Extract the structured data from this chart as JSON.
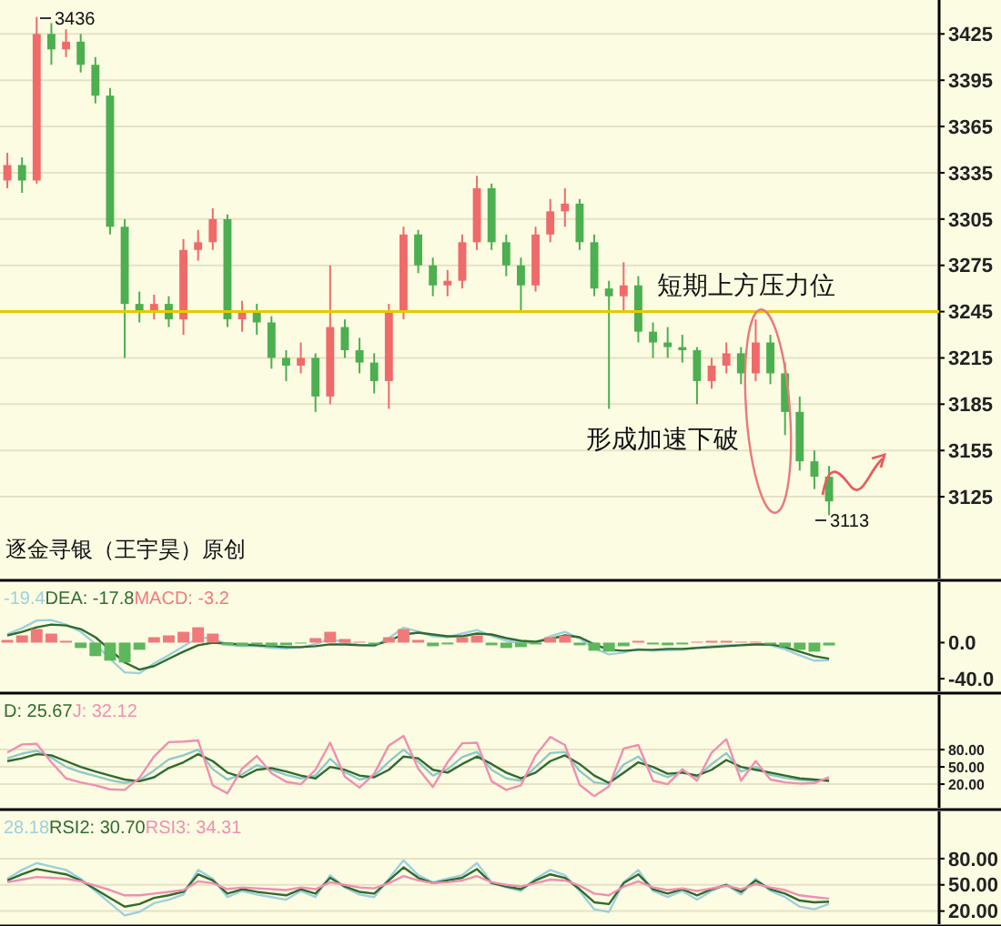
{
  "chart_data": [
    {
      "type": "candlestick",
      "categories": [
        null,
        null,
        null,
        null,
        null,
        null,
        null,
        null,
        null,
        null,
        null,
        null,
        null,
        null,
        null,
        null,
        null,
        null,
        null,
        null,
        null,
        null,
        null,
        null,
        null,
        null,
        null,
        null,
        null,
        null,
        null,
        null,
        null,
        null,
        null,
        null,
        null,
        null,
        null,
        null,
        null,
        null,
        null,
        null,
        null,
        null,
        null,
        null,
        null,
        null,
        null,
        null,
        null,
        null,
        null,
        null,
        null,
        null,
        null,
        null,
        null,
        null,
        null,
        null
      ],
      "ohlc": [
        [
          3330,
          3348,
          3325,
          3340
        ],
        [
          3340,
          3345,
          3322,
          3330
        ],
        [
          3330,
          3436,
          3328,
          3425
        ],
        [
          3425,
          3432,
          3405,
          3415
        ],
        [
          3415,
          3428,
          3410,
          3420
        ],
        [
          3420,
          3425,
          3400,
          3405
        ],
        [
          3405,
          3410,
          3380,
          3385
        ],
        [
          3385,
          3390,
          3295,
          3300
        ],
        [
          3300,
          3305,
          3215,
          3250
        ],
        [
          3250,
          3258,
          3238,
          3245
        ],
        [
          3245,
          3256,
          3240,
          3250
        ],
        [
          3250,
          3255,
          3235,
          3240
        ],
        [
          3240,
          3292,
          3230,
          3285
        ],
        [
          3285,
          3298,
          3278,
          3290
        ],
        [
          3290,
          3312,
          3285,
          3305
        ],
        [
          3305,
          3308,
          3235,
          3240
        ],
        [
          3240,
          3252,
          3232,
          3245
        ],
        [
          3245,
          3250,
          3230,
          3238
        ],
        [
          3238,
          3242,
          3208,
          3215
        ],
        [
          3215,
          3220,
          3200,
          3210
        ],
        [
          3210,
          3225,
          3205,
          3215
        ],
        [
          3215,
          3218,
          3180,
          3190
        ],
        [
          3190,
          3275,
          3185,
          3235
        ],
        [
          3235,
          3240,
          3215,
          3220
        ],
        [
          3220,
          3228,
          3205,
          3212
        ],
        [
          3212,
          3218,
          3192,
          3200
        ],
        [
          3200,
          3250,
          3182,
          3245
        ],
        [
          3245,
          3300,
          3240,
          3295
        ],
        [
          3295,
          3298,
          3270,
          3275
        ],
        [
          3275,
          3280,
          3255,
          3262
        ],
        [
          3262,
          3272,
          3255,
          3265
        ],
        [
          3265,
          3295,
          3260,
          3290
        ],
        [
          3290,
          3333,
          3285,
          3325
        ],
        [
          3325,
          3328,
          3285,
          3290
        ],
        [
          3290,
          3295,
          3268,
          3275
        ],
        [
          3275,
          3280,
          3245,
          3262
        ],
        [
          3262,
          3300,
          3258,
          3295
        ],
        [
          3295,
          3318,
          3290,
          3310
        ],
        [
          3310,
          3325,
          3300,
          3315
        ],
        [
          3315,
          3318,
          3285,
          3290
        ],
        [
          3290,
          3295,
          3255,
          3260
        ],
        [
          3260,
          3265,
          3182,
          3255
        ],
        [
          3255,
          3277,
          3245,
          3262
        ],
        [
          3262,
          3268,
          3225,
          3232
        ],
        [
          3232,
          3238,
          3215,
          3225
        ],
        [
          3225,
          3235,
          3215,
          3222
        ],
        [
          3222,
          3230,
          3212,
          3220
        ],
        [
          3220,
          3222,
          3185,
          3200
        ],
        [
          3200,
          3215,
          3195,
          3210
        ],
        [
          3210,
          3225,
          3205,
          3218
        ],
        [
          3218,
          3222,
          3198,
          3205
        ],
        [
          3205,
          3240,
          3200,
          3225
        ],
        [
          3225,
          3230,
          3198,
          3205
        ],
        [
          3205,
          3212,
          3165,
          3180
        ],
        [
          3180,
          3190,
          3142,
          3148
        ],
        [
          3148,
          3155,
          3130,
          3138
        ],
        [
          3138,
          3145,
          3113,
          3122
        ],
        null,
        null,
        null,
        null,
        null,
        null,
        null
      ],
      "colors": [
        "#f06a6a",
        "#4caf50",
        "#f06a6a",
        "#4caf50",
        "#f06a6a",
        "#4caf50",
        "#4caf50",
        "#4caf50",
        "#4caf50",
        "#4caf50",
        "#f06a6a",
        "#4caf50",
        "#f06a6a",
        "#f06a6a",
        "#f06a6a",
        "#4caf50",
        "#f06a6a",
        "#4caf50",
        "#4caf50",
        "#4caf50",
        "#f06a6a",
        "#4caf50",
        "#f06a6a",
        "#4caf50",
        "#4caf50",
        "#4caf50",
        "#f06a6a",
        "#f06a6a",
        "#4caf50",
        "#4caf50",
        "#f06a6a",
        "#f06a6a",
        "#f06a6a",
        "#4caf50",
        "#4caf50",
        "#4caf50",
        "#f06a6a",
        "#f06a6a",
        "#f06a6a",
        "#4caf50",
        "#4caf50",
        "#4caf50",
        "#f06a6a",
        "#4caf50",
        "#4caf50",
        "#4caf50",
        "#4caf50",
        "#4caf50",
        "#f06a6a",
        "#f06a6a",
        "#4caf50",
        "#f06a6a",
        "#4caf50",
        "#4caf50",
        "#4caf50",
        "#4caf50",
        "#4caf50",
        null,
        null,
        null,
        null,
        null,
        null,
        null
      ],
      "ylim": [
        3072,
        3447
      ],
      "yticks": [
        3125,
        3155,
        3185,
        3215,
        3245,
        3275,
        3305,
        3335,
        3365,
        3395,
        3425
      ],
      "grid": "y",
      "tick_labels": "y",
      "ref_lines": [
        {
          "axis": "y",
          "value": 3245,
          "label": "短期上方压力位",
          "color": "#e8c800"
        }
      ],
      "annotations": [
        "3436",
        "3113",
        "形成加速下破",
        "逐金寻银（王宇昊）原创"
      ]
    },
    {
      "type": "line",
      "categories": [
        null,
        null,
        null,
        null,
        null,
        null,
        null,
        null,
        null,
        null,
        null,
        null,
        null,
        null,
        null,
        null,
        null,
        null,
        null,
        null,
        null,
        null,
        null,
        null,
        null,
        null,
        null,
        null,
        null,
        null,
        null,
        null,
        null,
        null,
        null,
        null,
        null,
        null,
        null,
        null,
        null,
        null,
        null,
        null,
        null,
        null,
        null,
        null,
        null,
        null,
        null,
        null,
        null,
        null,
        null,
        null,
        null,
        null,
        null,
        null,
        null,
        null,
        null,
        null
      ],
      "ylim": [
        -54,
        67
      ],
      "yticks": [
        {
          "value": 0,
          "label": "0.0"
        },
        {
          "value": -40,
          "label": "-40.0"
        }
      ],
      "tick_labels": "y",
      "legend": "top left",
      "series": [
        {
          "name": "-19.4",
          "color": "#9ed0dc",
          "values": [
            9.5,
            16,
            24.5,
            25,
            20,
            12,
            -1.5,
            -18,
            -33,
            -34,
            -23,
            -14,
            -4,
            5.5,
            5,
            -2.5,
            -4,
            -4,
            -6,
            -6.5,
            -5.5,
            -1.5,
            4,
            0,
            -2.5,
            -4,
            5,
            16.5,
            12.5,
            7,
            6,
            10,
            14,
            7.5,
            2,
            -0.5,
            0,
            7,
            12,
            4.5,
            -6.5,
            -13,
            -11,
            -7,
            -9,
            -8.5,
            -8,
            -5.5,
            -4,
            -3,
            -2.5,
            -1.5,
            -3,
            -7.5,
            -14,
            -20,
            -19.4,
            null,
            null,
            null,
            null,
            null,
            null,
            null
          ]
        },
        {
          "name": "DEA: -17.8",
          "color": "#2f6b2f",
          "values": [
            8,
            12,
            17,
            20,
            19,
            15,
            6,
            -8,
            -22,
            -30,
            -26,
            -18,
            -10,
            -3,
            0,
            -1,
            -2,
            -3,
            -4,
            -5,
            -5,
            -4,
            -2,
            -2,
            -3,
            -3,
            2,
            9,
            11,
            9,
            7,
            7,
            10,
            9,
            5,
            2,
            1,
            4,
            8,
            6,
            -2,
            -8,
            -9,
            -8,
            -8,
            -7,
            -7,
            -6,
            -5,
            -4,
            -3,
            -2,
            -2,
            -5,
            -10,
            -15,
            -17.8,
            null,
            null,
            null,
            null,
            null,
            null,
            null
          ]
        },
        {
          "name": "MACD: -3.2",
          "type": "bar",
          "color": "#f07a7a",
          "colors": [
            "#f07a7a",
            "#f07a7a",
            "#f07a7a",
            "#f07a7a",
            "#f07a7a",
            "#5cb85c",
            "#5cb85c",
            "#5cb85c",
            "#5cb85c",
            "#5cb85c",
            "#f07a7a",
            "#f07a7a",
            "#f07a7a",
            "#f07a7a",
            "#f07a7a",
            "#5cb85c",
            "#5cb85c",
            "#5cb85c",
            "#5cb85c",
            "#5cb85c",
            "#5cb85c",
            "#f07a7a",
            "#f07a7a",
            "#f07a7a",
            "#f07a7a",
            "#5cb85c",
            "#f07a7a",
            "#f07a7a",
            "#f07a7a",
            "#5cb85c",
            "#5cb85c",
            "#f07a7a",
            "#f07a7a",
            "#5cb85c",
            "#5cb85c",
            "#5cb85c",
            "#5cb85c",
            "#f07a7a",
            "#f07a7a",
            "#5cb85c",
            "#5cb85c",
            "#5cb85c",
            "#5cb85c",
            "#f07a7a",
            "#5cb85c",
            "#5cb85c",
            "#5cb85c",
            "#f07a7a",
            "#f07a7a",
            "#f07a7a",
            "#f07a7a",
            "#f07a7a",
            "#5cb85c",
            "#5cb85c",
            "#5cb85c",
            "#5cb85c",
            "#5cb85c",
            null,
            null,
            null,
            null,
            null,
            null,
            null
          ],
          "values": [
            3,
            8,
            15,
            10,
            2,
            -6,
            -15,
            -20,
            -22,
            -8,
            6,
            8,
            12,
            17,
            10,
            -3,
            -4,
            -2,
            -4,
            -3,
            -1,
            5,
            12,
            4,
            1,
            -2,
            6,
            15,
            3,
            -4,
            -2,
            6,
            8,
            -3,
            -6,
            -5,
            -2,
            6,
            8,
            -3,
            -9,
            -10,
            -4,
            2,
            -2,
            -3,
            -2,
            1,
            2,
            2,
            1,
            1,
            -2,
            -5,
            -8,
            -10,
            -3.2,
            null,
            null,
            null,
            null,
            null,
            null,
            null
          ]
        }
      ]
    },
    {
      "type": "line",
      "categories": [
        null,
        null,
        null,
        null,
        null,
        null,
        null,
        null,
        null,
        null,
        null,
        null,
        null,
        null,
        null,
        null,
        null,
        null,
        null,
        null,
        null,
        null,
        null,
        null,
        null,
        null,
        null,
        null,
        null,
        null,
        null,
        null,
        null,
        null,
        null,
        null,
        null,
        null,
        null,
        null,
        null,
        null,
        null,
        null,
        null,
        null,
        null,
        null,
        null,
        null,
        null,
        null,
        null,
        null,
        null,
        null,
        null,
        null,
        null,
        null,
        null,
        null,
        null,
        null
      ],
      "ylim": [
        -21,
        175
      ],
      "yticks": [
        {
          "value": 20,
          "label": "20.00"
        },
        {
          "value": 50,
          "label": "50.00"
        },
        {
          "value": 80,
          "label": "80.00"
        }
      ],
      "grid": "y",
      "tick_labels": "y",
      "legend": "top left",
      "series": [
        {
          "color": "#8fc9c9",
          "values": [
            65,
            73,
            78,
            66,
            50,
            41,
            34,
            27,
            22,
            27,
            44,
            63,
            70,
            80,
            46,
            28,
            37,
            53,
            45,
            36,
            30,
            35,
            64,
            41,
            28,
            34,
            59,
            80,
            59,
            35,
            46,
            67,
            76,
            45,
            30,
            26,
            50,
            74,
            76,
            43,
            23,
            20,
            54,
            68,
            42,
            32,
            42,
            32,
            55,
            74,
            42,
            50,
            36,
            31,
            27,
            26,
            27.82,
            null,
            null,
            null,
            null,
            null,
            null,
            null
          ]
        },
        {
          "name": "D: 25.67",
          "color": "#2f6b2f",
          "values": [
            60,
            65,
            72,
            70,
            60,
            50,
            42,
            35,
            28,
            25,
            32,
            48,
            58,
            72,
            60,
            40,
            32,
            45,
            48,
            42,
            35,
            30,
            50,
            45,
            35,
            32,
            45,
            68,
            65,
            45,
            40,
            55,
            68,
            55,
            40,
            30,
            40,
            60,
            70,
            55,
            35,
            22,
            40,
            58,
            50,
            38,
            40,
            35,
            45,
            62,
            50,
            45,
            40,
            35,
            30,
            28,
            25.67,
            null,
            null,
            null,
            null,
            null,
            null,
            null
          ]
        },
        {
          "name": "J: 32.12",
          "color": "#f08fb0",
          "values": [
            75,
            89,
            90,
            58,
            30,
            23,
            18,
            11,
            10,
            31,
            68,
            93,
            94,
            96,
            18,
            4,
            47,
            69,
            39,
            24,
            20,
            45,
            92,
            33,
            14,
            38,
            87,
            104,
            47,
            15,
            58,
            91,
            92,
            25,
            10,
            18,
            70,
            102,
            88,
            19,
            -1,
            16,
            82,
            88,
            26,
            20,
            46,
            26,
            75,
            98,
            26,
            60,
            28,
            23,
            21,
            22,
            32.12,
            null,
            null,
            null,
            null,
            null,
            null,
            null
          ]
        }
      ]
    },
    {
      "type": "line",
      "categories": [
        null,
        null,
        null,
        null,
        null,
        null,
        null,
        null,
        null,
        null,
        null,
        null,
        null,
        null,
        null,
        null,
        null,
        null,
        null,
        null,
        null,
        null,
        null,
        null,
        null,
        null,
        null,
        null,
        null,
        null,
        null,
        null,
        null,
        null,
        null,
        null,
        null,
        null,
        null,
        null,
        null,
        null,
        null,
        null,
        null,
        null,
        null,
        null,
        null,
        null,
        null,
        null,
        null,
        null,
        null,
        null,
        null,
        null,
        null,
        null,
        null,
        null,
        null,
        null
      ],
      "ylim": [
        5,
        134
      ],
      "yticks": [
        {
          "value": 20,
          "label": "20.00"
        },
        {
          "value": 50,
          "label": "50.00"
        },
        {
          "value": 80,
          "label": "80.00"
        }
      ],
      "grid": "y",
      "tick_labels": "y",
      "legend": "top left",
      "series": [
        {
          "name": "28.18",
          "color": "#9ed0dc",
          "values": [
            57,
            67,
            75,
            71,
            67,
            57,
            43,
            29,
            15,
            19,
            29,
            33,
            39,
            67,
            57,
            36,
            43,
            39,
            36,
            33,
            43,
            36,
            61,
            47,
            39,
            36,
            57,
            78,
            61,
            53,
            57,
            61,
            75,
            53,
            47,
            43,
            57,
            67,
            61,
            43,
            22,
            19,
            53,
            67,
            43,
            36,
            43,
            33,
            43,
            50,
            39,
            57,
            43,
            36,
            25,
            22,
            28.18,
            null,
            null,
            null,
            null,
            null,
            null,
            null
          ]
        },
        {
          "name": "RSI2: 30.70",
          "color": "#2f6b2f",
          "values": [
            55,
            62,
            68,
            65,
            62,
            55,
            45,
            35,
            25,
            28,
            35,
            38,
            42,
            62,
            55,
            40,
            45,
            42,
            40,
            38,
            45,
            40,
            58,
            48,
            42,
            40,
            55,
            70,
            58,
            52,
            55,
            58,
            68,
            52,
            48,
            45,
            55,
            62,
            58,
            45,
            30,
            28,
            52,
            62,
            45,
            40,
            45,
            38,
            45,
            50,
            42,
            55,
            45,
            40,
            32,
            30,
            30.7,
            null,
            null,
            null,
            null,
            null,
            null,
            null
          ]
        },
        {
          "name": "RSI3: 34.31",
          "color": "#f08fb0",
          "values": [
            53,
            56,
            59,
            58,
            57,
            54,
            49,
            44,
            38,
            38,
            40,
            42,
            44,
            54,
            52,
            45,
            47,
            46,
            45,
            44,
            47,
            45,
            53,
            50,
            47,
            46,
            52,
            60,
            55,
            52,
            53,
            55,
            60,
            53,
            50,
            48,
            52,
            56,
            55,
            49,
            40,
            38,
            48,
            54,
            47,
            44,
            46,
            43,
            46,
            49,
            45,
            51,
            47,
            44,
            38,
            36,
            34.31,
            null,
            null,
            null,
            null,
            null,
            null,
            null
          ]
        }
      ]
    }
  ]
}
